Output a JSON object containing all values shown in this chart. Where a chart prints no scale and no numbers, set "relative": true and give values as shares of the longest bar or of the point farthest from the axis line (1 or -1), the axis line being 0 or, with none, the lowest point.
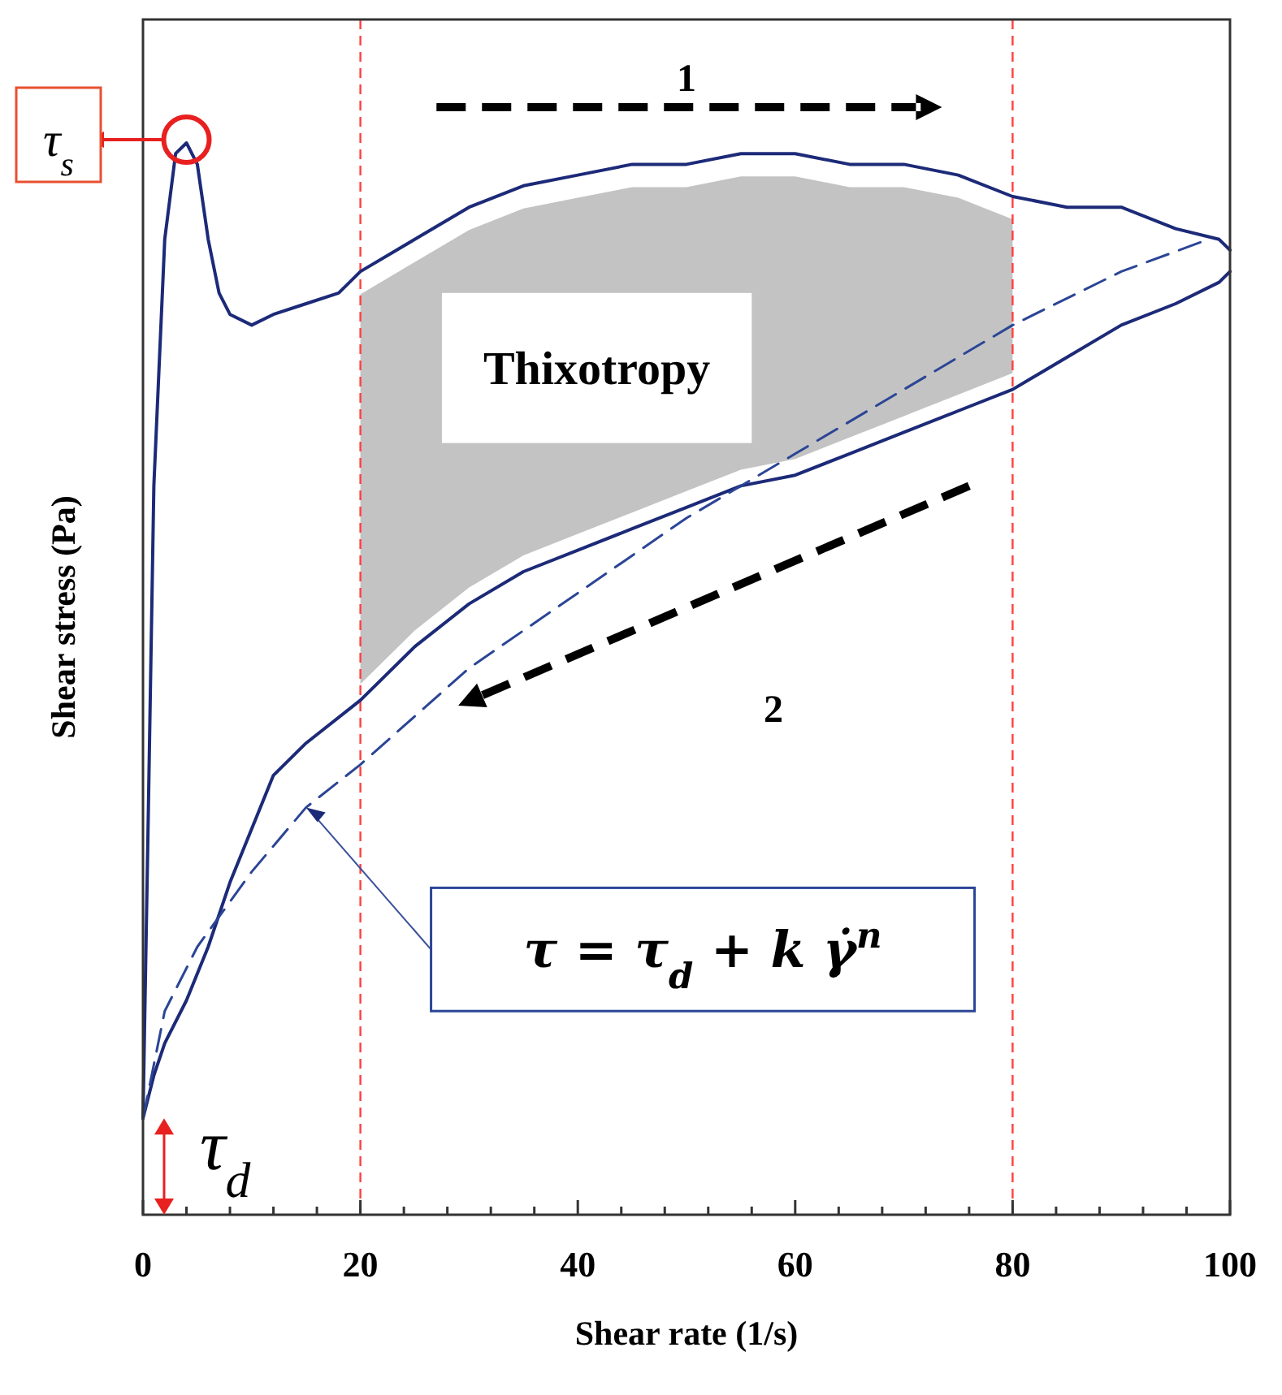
{
  "chart_data": {
    "type": "line",
    "xlabel": "Shear rate (1/s)",
    "ylabel": "Shear stress (Pa)",
    "relative": true,
    "xlim": [
      0,
      100
    ],
    "xticks": [
      0,
      {
        "value": 4,
        "label": null
      },
      {
        "value": 8,
        "label": null
      },
      {
        "value": 12,
        "label": null
      },
      {
        "value": 16,
        "label": null
      },
      20,
      {
        "value": 24,
        "label": null
      },
      {
        "value": 28,
        "label": null
      },
      {
        "value": 32,
        "label": null
      },
      {
        "value": 36,
        "label": null
      },
      40,
      {
        "value": 44,
        "label": null
      },
      {
        "value": 48,
        "label": null
      },
      {
        "value": 52,
        "label": null
      },
      {
        "value": 56,
        "label": null
      },
      60,
      {
        "value": 64,
        "label": null
      },
      {
        "value": 68,
        "label": null
      },
      {
        "value": 72,
        "label": null
      },
      {
        "value": 76,
        "label": null
      },
      80,
      {
        "value": 84,
        "label": null
      },
      {
        "value": 88,
        "label": null
      },
      {
        "value": 92,
        "label": null
      },
      {
        "value": 96,
        "label": null
      },
      100
    ],
    "series": [
      {
        "color": "#1c2a78",
        "x": [
          0,
          0.5,
          1,
          2,
          3,
          4,
          5,
          6,
          7,
          8,
          10,
          12,
          15,
          18,
          20,
          25,
          30,
          35,
          40,
          45,
          50,
          55,
          60,
          65,
          70,
          75,
          80,
          85,
          90,
          95,
          99,
          100
        ],
        "values": [
          0.09,
          0.38,
          0.68,
          0.91,
          0.99,
          1,
          0.98,
          0.91,
          0.86,
          0.84,
          0.83,
          0.84,
          0.85,
          0.86,
          0.88,
          0.91,
          0.94,
          0.96,
          0.97,
          0.98,
          0.98,
          0.99,
          0.99,
          0.98,
          0.98,
          0.97,
          0.95,
          0.94,
          0.94,
          0.92,
          0.91,
          0.9
        ]
      },
      {
        "color": "#1c2a78",
        "x": [
          100,
          99,
          95,
          90,
          85,
          80,
          75,
          70,
          65,
          60,
          55,
          50,
          45,
          40,
          35,
          30,
          25,
          20,
          15,
          12,
          10,
          8,
          6,
          4,
          2,
          1,
          0
        ],
        "values": [
          0.88,
          0.87,
          0.85,
          0.83,
          0.8,
          0.77,
          0.75,
          0.73,
          0.71,
          0.69,
          0.68,
          0.66,
          0.64,
          0.62,
          0.6,
          0.57,
          0.53,
          0.48,
          0.44,
          0.41,
          0.36,
          0.31,
          0.25,
          0.2,
          0.16,
          0.13,
          0.09
        ]
      },
      {
        "line_style": "dashed",
        "color": "#2b4596",
        "x": [
          0,
          2,
          5,
          10,
          15,
          20,
          30,
          40,
          50,
          60,
          70,
          80,
          90,
          98
        ],
        "values": [
          0.09,
          0.19,
          0.25,
          0.32,
          0.38,
          0.42,
          0.51,
          0.58,
          0.65,
          0.71,
          0.77,
          0.83,
          0.88,
          0.91
        ]
      }
    ],
    "ref_lines": [
      {
        "axis": "x",
        "value": 20,
        "color": "#ff4040",
        "line_style": "dashed"
      },
      {
        "axis": "x",
        "value": 80,
        "color": "#ff4040",
        "line_style": "dashed"
      }
    ],
    "annotations": [
      {
        "text": "τ$_{s}$",
        "x": 4,
        "y": 1
      },
      "1",
      "Thixotropy",
      "2",
      "τ = τ$_{d}$ + k γ̇$^{n}$",
      {
        "text": "τ$_{d}$",
        "x": 0,
        "y": 0.09
      }
    ]
  }
}
